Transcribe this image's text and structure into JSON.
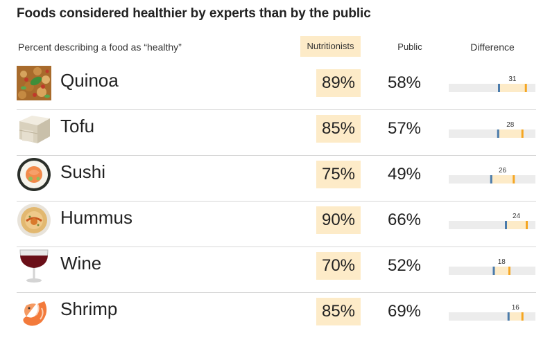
{
  "title": "Foods considered healthier by experts than by the public",
  "subtitle": "Percent describing a food as “healthy”",
  "columns": {
    "nutritionists": "Nutritionists",
    "public": "Public",
    "difference": "Difference"
  },
  "colors": {
    "nutritionists": "#f5a623",
    "public": "#4a7bab",
    "highlight": "#fdebc8",
    "track": "#ececec"
  },
  "icons": [
    "quinoa-icon",
    "tofu-icon",
    "sushi-icon",
    "hummus-icon",
    "wine-icon",
    "shrimp-icon"
  ],
  "rows": [
    {
      "food": "Quinoa",
      "nutritionists": "89%",
      "public": "58%",
      "difference": "31"
    },
    {
      "food": "Tofu",
      "nutritionists": "85%",
      "public": "57%",
      "difference": "28"
    },
    {
      "food": "Sushi",
      "nutritionists": "75%",
      "public": "49%",
      "difference": "26"
    },
    {
      "food": "Hummus",
      "nutritionists": "90%",
      "public": "66%",
      "difference": "24"
    },
    {
      "food": "Wine",
      "nutritionists": "70%",
      "public": "52%",
      "difference": "18"
    },
    {
      "food": "Shrimp",
      "nutritionists": "85%",
      "public": "69%",
      "difference": "16"
    }
  ],
  "chart_data": {
    "type": "table",
    "categories": [
      "Quinoa",
      "Tofu",
      "Sushi",
      "Hummus",
      "Wine",
      "Shrimp"
    ],
    "series": [
      {
        "name": "Nutritionists",
        "values": [
          89,
          85,
          75,
          90,
          70,
          85
        ]
      },
      {
        "name": "Public",
        "values": [
          58,
          57,
          49,
          66,
          52,
          69
        ]
      },
      {
        "name": "Difference",
        "values": [
          31,
          28,
          26,
          24,
          18,
          16
        ]
      }
    ],
    "xlim": [
      0,
      100
    ]
  }
}
